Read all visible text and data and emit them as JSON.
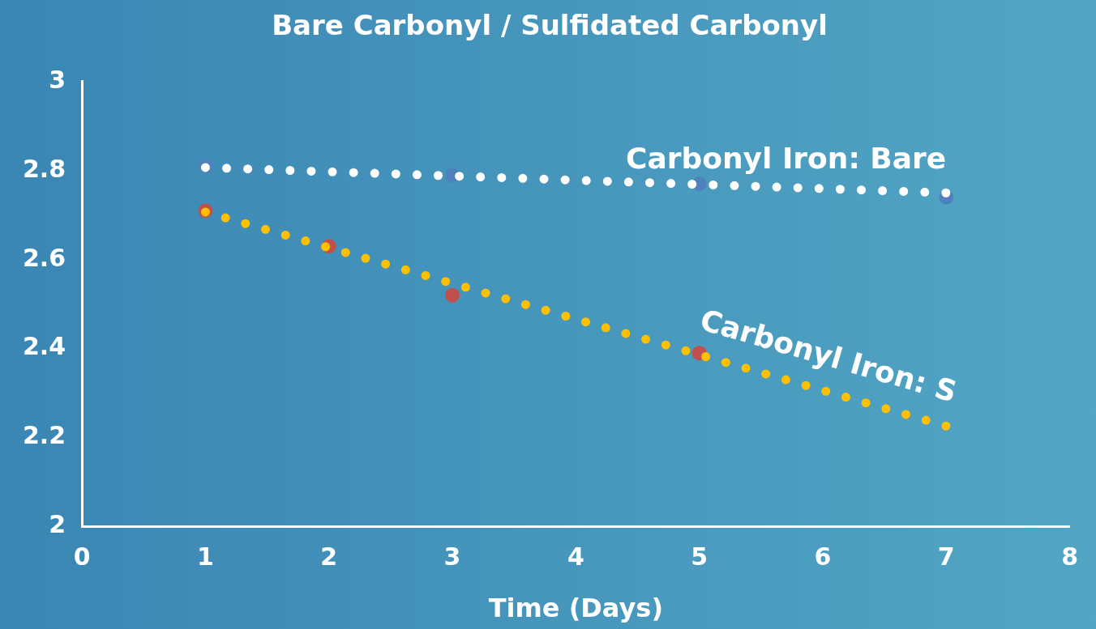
{
  "chart_data": {
    "type": "scatter",
    "title": "Bare Carbonyl / Sulfidated Carbonyl",
    "xlabel": "Time (Days)",
    "xlim": [
      0,
      8
    ],
    "xticks": [
      0,
      1,
      2,
      3,
      4,
      5,
      6,
      7,
      8
    ],
    "ylim": [
      2,
      3
    ],
    "yticks": [
      2,
      2.2,
      2.4,
      2.6,
      2.8,
      3
    ],
    "grid": false,
    "legend": false,
    "marker": "circle",
    "series": [
      {
        "type": "scatter",
        "color": "#4f81bd",
        "x": [
          1,
          3,
          5,
          7
        ],
        "values": [
          2.81,
          2.79,
          2.77,
          2.74
        ]
      },
      {
        "type": "scatter",
        "color": "#c0504d",
        "x": [
          1,
          2,
          3,
          5
        ],
        "values": [
          2.71,
          2.63,
          2.52,
          2.39
        ]
      },
      {
        "type": "line",
        "name": "Carbonyl Iron: Bare",
        "color": "#ffffff",
        "line_style": "dotted",
        "marker": "none",
        "x": [
          1,
          7
        ],
        "values": [
          2.807,
          2.75
        ]
      },
      {
        "type": "line",
        "name": "Carbonyl Iron: S",
        "color": "#ffc000",
        "line_style": "dotted",
        "marker": "none",
        "x": [
          1,
          7
        ],
        "values": [
          2.707,
          2.226
        ]
      }
    ]
  }
}
